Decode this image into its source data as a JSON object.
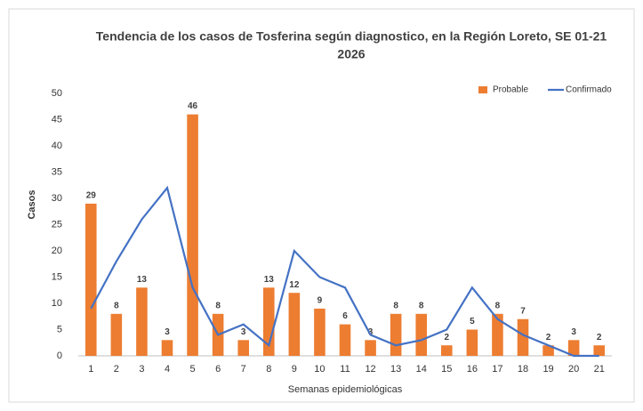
{
  "chart_data": {
    "type": "bar_line",
    "title": [
      "Tendencia de los casos de Tosferina según diagnostico, en la Región Loreto, SE 01-21",
      "2026"
    ],
    "x_label": "Semanas epidemiológicas",
    "y_label": "Casos",
    "categories": [
      "1",
      "2",
      "3",
      "4",
      "5",
      "6",
      "7",
      "8",
      "9",
      "10",
      "11",
      "12",
      "13",
      "14",
      "15",
      "16",
      "17",
      "18",
      "19",
      "20",
      "21"
    ],
    "series": [
      {
        "name": "Probable",
        "type": "bar",
        "color": "#ed7d31",
        "values": [
          29,
          8,
          13,
          3,
          46,
          8,
          3,
          13,
          12,
          9,
          6,
          3,
          8,
          8,
          2,
          5,
          8,
          7,
          2,
          3,
          2
        ]
      },
      {
        "name": "Confirmado",
        "type": "line",
        "color": "#4472c4",
        "values": [
          9,
          18,
          26,
          32,
          13,
          4,
          6,
          2,
          20,
          15,
          13,
          4,
          2,
          3,
          5,
          13,
          7,
          4,
          2,
          0,
          0
        ]
      }
    ],
    "ylim": [
      0,
      50
    ],
    "yticks": [
      0,
      5,
      10,
      15,
      20,
      25,
      30,
      35,
      40,
      45,
      50
    ],
    "grid": false,
    "legend": "top-right"
  }
}
